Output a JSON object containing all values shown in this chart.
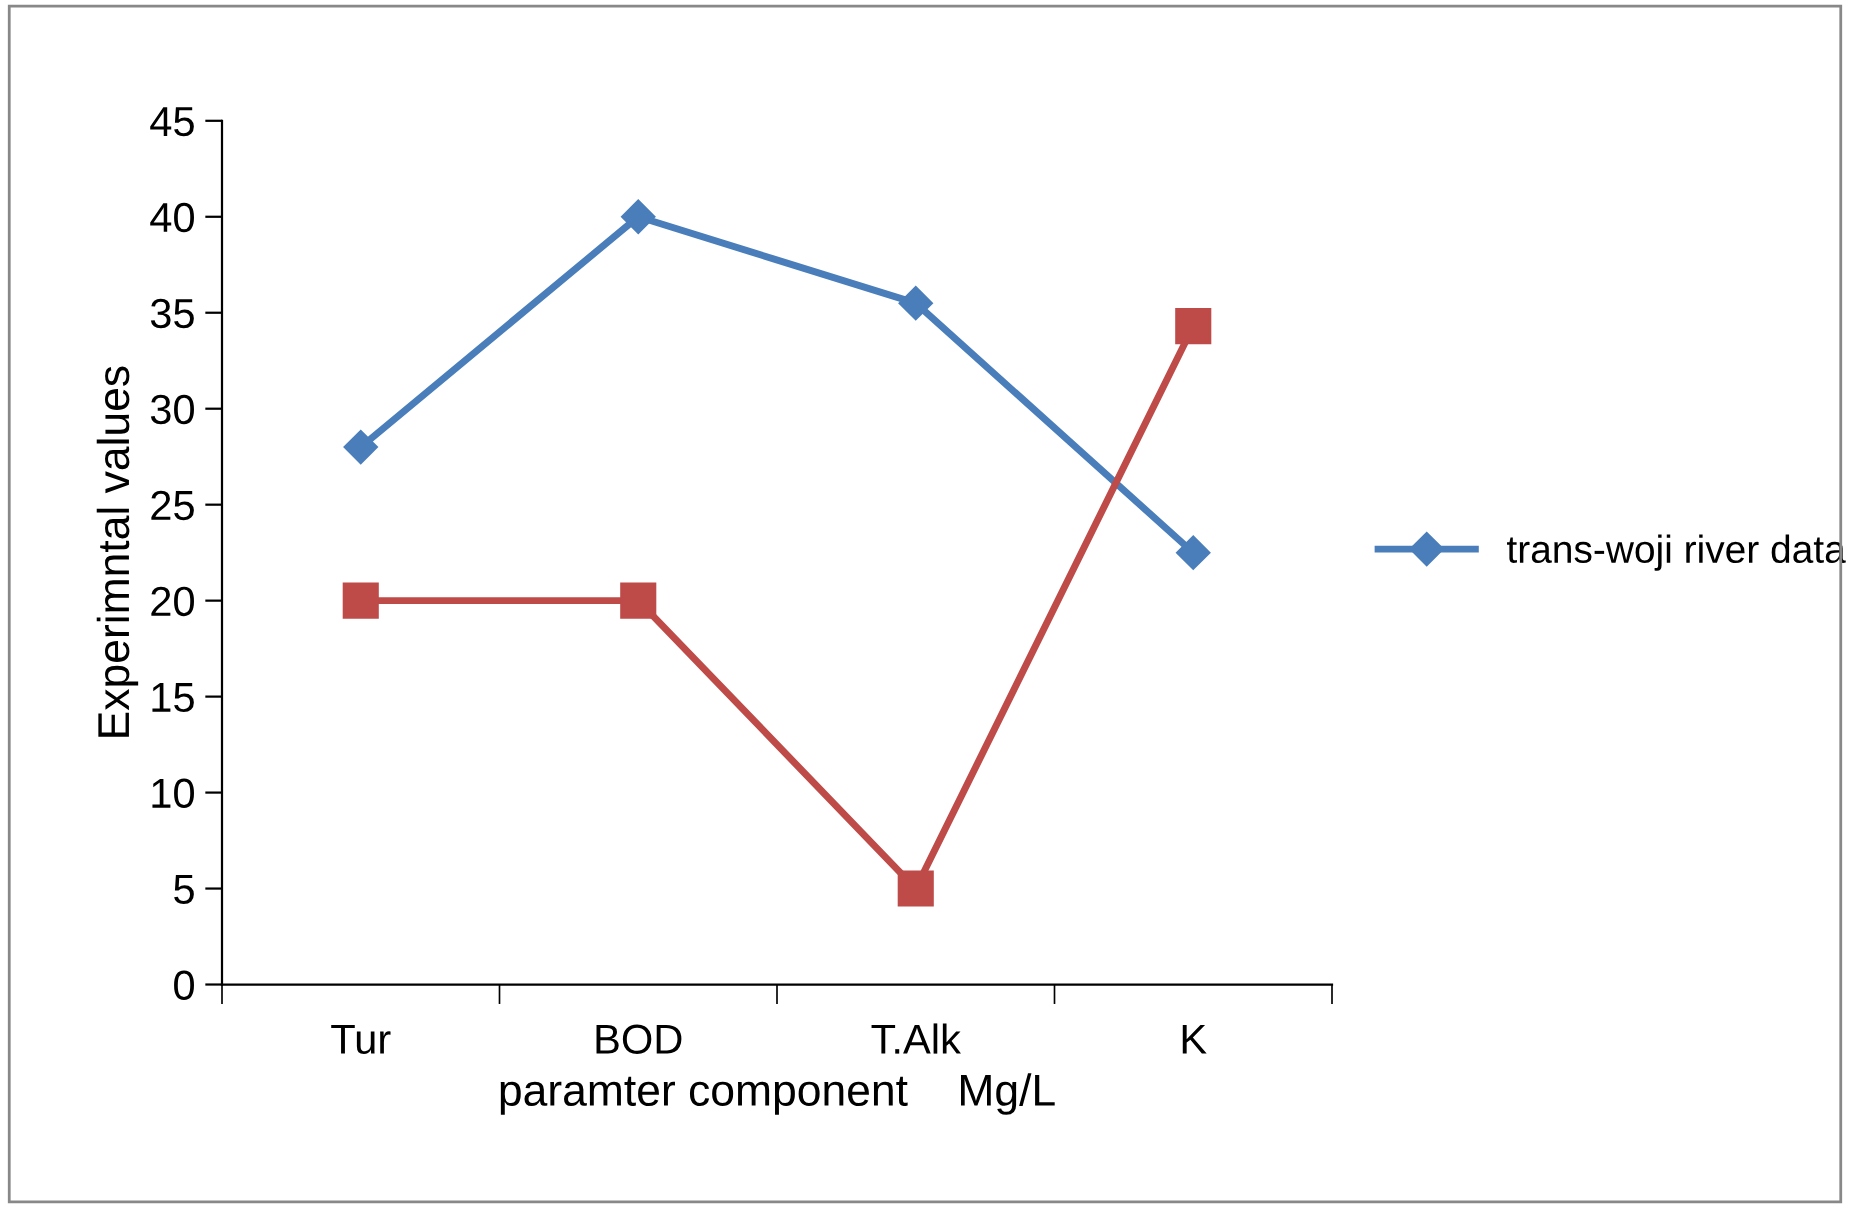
{
  "chart_data": {
    "type": "line",
    "xlabel": "paramter component    Mg/L",
    "ylabel": "Experimntal values",
    "categories": [
      "Tur",
      "BOD",
      "T.Alk",
      "K"
    ],
    "series": [
      {
        "name": "trans-woji river data",
        "color": "#4a7ebb",
        "marker": "diamond",
        "values": [
          28,
          40,
          35.5,
          22.5
        ]
      },
      {
        "color": "#be4b48",
        "marker": "square",
        "values": [
          20,
          20,
          5,
          34.3
        ]
      }
    ],
    "ylim": [
      0,
      45
    ],
    "yticks": [
      0,
      5,
      10,
      15,
      20,
      25,
      30,
      35,
      40,
      45
    ],
    "grid": false,
    "legend": "right"
  }
}
